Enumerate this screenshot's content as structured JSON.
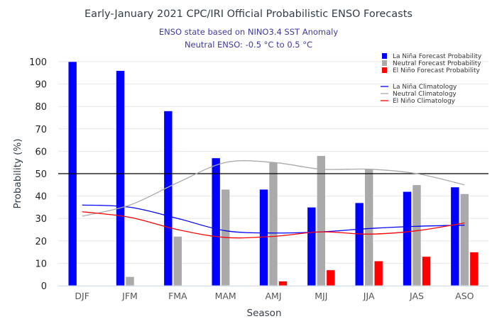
{
  "chart_data": {
    "type": "bar",
    "title": "Early-January 2021 CPC/IRI Official Probabilistic ENSO Forecasts",
    "subtitle": [
      "ENSO state based on NINO3.4 SST Anomaly",
      "Neutral ENSO: -0.5 °C to 0.5 °C"
    ],
    "xlabel": "Season",
    "ylabel": "Probability (%)",
    "ylim": [
      0,
      100
    ],
    "yticks": [
      0,
      10,
      20,
      30,
      40,
      50,
      60,
      70,
      80,
      90,
      100
    ],
    "reference_line": 50,
    "grid": true,
    "legend_position": "top-right",
    "categories": [
      "DJF",
      "JFM",
      "FMA",
      "MAM",
      "AMJ",
      "MJJ",
      "JJA",
      "JAS",
      "ASO"
    ],
    "series": [
      {
        "name": "La Niña Forecast Probability",
        "kind": "bar",
        "color": "#0000ff",
        "values": [
          100,
          96,
          78,
          57,
          43,
          35,
          37,
          42,
          44
        ]
      },
      {
        "name": "Neutral Forecast Probability",
        "kind": "bar",
        "color": "#aaaaaa",
        "values": [
          0,
          4,
          22,
          43,
          55,
          58,
          52,
          45,
          41
        ]
      },
      {
        "name": "El Niño Forecast Probability",
        "kind": "bar",
        "color": "#ff0000",
        "values": [
          0,
          0,
          0,
          0,
          2,
          7,
          11,
          13,
          15
        ]
      },
      {
        "name": "La Niña Climatology",
        "kind": "line",
        "color": "#0000ff",
        "values": [
          36,
          35,
          30,
          24.5,
          23.5,
          24,
          25.5,
          26.5,
          27
        ]
      },
      {
        "name": "Neutral Climatology",
        "kind": "line",
        "color": "#aaaaaa",
        "values": [
          31,
          36,
          46,
          55,
          55,
          52,
          52,
          50,
          45
        ]
      },
      {
        "name": "El Niño Climatology",
        "kind": "line",
        "color": "#ff0000",
        "values": [
          33,
          30.5,
          25,
          21.5,
          22,
          24,
          23,
          24.5,
          28
        ]
      }
    ]
  }
}
